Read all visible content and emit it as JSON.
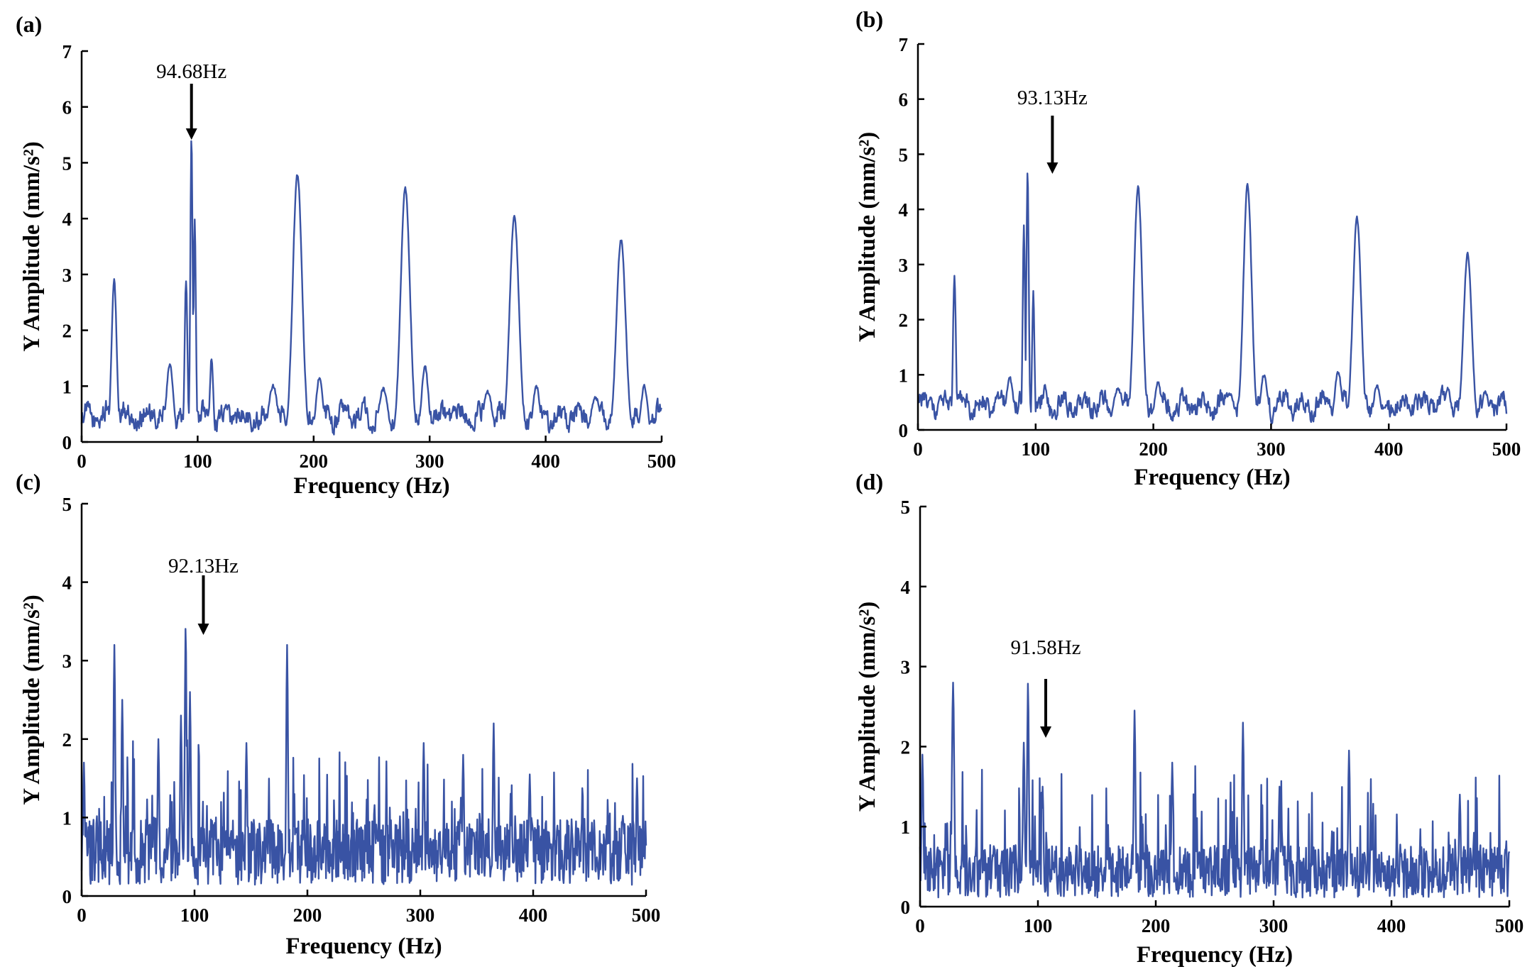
{
  "chart_data": [
    {
      "type": "line",
      "panel": "(a)",
      "xlabel": "Frequency (Hz)",
      "ylabel": "Y Amplitude (mm/s²)",
      "xlim": [
        0,
        500
      ],
      "ylim": [
        0,
        7
      ],
      "xticks": [
        0,
        100,
        200,
        300,
        400,
        500
      ],
      "yticks": [
        0,
        1,
        2,
        3,
        4,
        5,
        6,
        7
      ],
      "annotation": {
        "text": "94.68Hz",
        "x": 94.68
      },
      "series_color": "#3953a4",
      "peaks": [
        {
          "x": 28,
          "y": 2.9,
          "w": 2.2
        },
        {
          "x": 76,
          "y": 1.4,
          "w": 3
        },
        {
          "x": 90,
          "y": 2.9,
          "w": 1.2
        },
        {
          "x": 94.68,
          "y": 5.45,
          "w": 1
        },
        {
          "x": 97.5,
          "y": 4.0,
          "w": 1
        },
        {
          "x": 112,
          "y": 1.5,
          "w": 1.5
        },
        {
          "x": 165,
          "y": 1.0,
          "w": 4
        },
        {
          "x": 186,
          "y": 4.8,
          "w": 4
        },
        {
          "x": 205,
          "y": 1.15,
          "w": 3
        },
        {
          "x": 260,
          "y": 0.95,
          "w": 4
        },
        {
          "x": 279,
          "y": 4.55,
          "w": 4
        },
        {
          "x": 296,
          "y": 1.35,
          "w": 3
        },
        {
          "x": 350,
          "y": 0.9,
          "w": 4
        },
        {
          "x": 373,
          "y": 4.05,
          "w": 4
        },
        {
          "x": 392,
          "y": 1.0,
          "w": 3
        },
        {
          "x": 443,
          "y": 0.8,
          "w": 4
        },
        {
          "x": 465,
          "y": 3.62,
          "w": 4
        },
        {
          "x": 485,
          "y": 1.0,
          "w": 3
        }
      ],
      "baseline": 0.45
    },
    {
      "type": "line",
      "panel": "(b)",
      "xlabel": "Frequency (Hz)",
      "ylabel": "Y Amplitude (mm/s²)",
      "xlim": [
        0,
        500
      ],
      "ylim": [
        0,
        7
      ],
      "xticks": [
        0,
        100,
        200,
        300,
        400,
        500
      ],
      "yticks": [
        0,
        1,
        2,
        3,
        4,
        5,
        6,
        7
      ],
      "annotation": {
        "text": "93.13Hz",
        "x": 93.13
      },
      "series_color": "#3953a4",
      "peaks": [
        {
          "x": 31,
          "y": 2.8,
          "w": 1.2
        },
        {
          "x": 78,
          "y": 0.95,
          "w": 3
        },
        {
          "x": 90,
          "y": 3.7,
          "w": 1
        },
        {
          "x": 93.13,
          "y": 4.7,
          "w": 1
        },
        {
          "x": 98,
          "y": 2.5,
          "w": 1
        },
        {
          "x": 108,
          "y": 0.8,
          "w": 2
        },
        {
          "x": 170,
          "y": 0.75,
          "w": 4
        },
        {
          "x": 187,
          "y": 4.4,
          "w": 3.5
        },
        {
          "x": 204,
          "y": 0.85,
          "w": 3
        },
        {
          "x": 265,
          "y": 0.65,
          "w": 4
        },
        {
          "x": 280,
          "y": 4.45,
          "w": 3.5
        },
        {
          "x": 294,
          "y": 1.0,
          "w": 3
        },
        {
          "x": 357,
          "y": 1.05,
          "w": 3
        },
        {
          "x": 373,
          "y": 3.85,
          "w": 3.5
        },
        {
          "x": 390,
          "y": 0.8,
          "w": 3
        },
        {
          "x": 450,
          "y": 0.75,
          "w": 3
        },
        {
          "x": 467,
          "y": 3.2,
          "w": 3.5
        },
        {
          "x": 482,
          "y": 0.7,
          "w": 3
        }
      ],
      "baseline": 0.45
    },
    {
      "type": "line",
      "panel": "(c)",
      "xlabel": "Frequency (Hz)",
      "ylabel": "Y Amplitude (mm/s²)",
      "xlim": [
        0,
        500
      ],
      "ylim": [
        0,
        5
      ],
      "xticks": [
        0,
        100,
        200,
        300,
        400,
        500
      ],
      "yticks": [
        0,
        1,
        2,
        3,
        4,
        5
      ],
      "annotation": {
        "text": "92.13Hz",
        "x": 92.13
      },
      "series_color": "#3953a4",
      "peaks": [
        {
          "x": 2,
          "y": 1.7,
          "w": 0.8
        },
        {
          "x": 29,
          "y": 3.2,
          "w": 0.8
        },
        {
          "x": 36,
          "y": 2.5,
          "w": 0.8
        },
        {
          "x": 68,
          "y": 2.0,
          "w": 0.8
        },
        {
          "x": 88,
          "y": 2.3,
          "w": 0.8
        },
        {
          "x": 92.13,
          "y": 3.45,
          "w": 0.8
        },
        {
          "x": 96,
          "y": 2.6,
          "w": 0.8
        },
        {
          "x": 146,
          "y": 1.95,
          "w": 0.8
        },
        {
          "x": 182,
          "y": 3.2,
          "w": 0.8
        },
        {
          "x": 303,
          "y": 1.95,
          "w": 0.8
        },
        {
          "x": 338,
          "y": 1.8,
          "w": 0.8
        },
        {
          "x": 365,
          "y": 2.2,
          "w": 0.8
        },
        {
          "x": 397,
          "y": 1.55,
          "w": 0.8
        },
        {
          "x": 492,
          "y": 1.5,
          "w": 0.8
        }
      ],
      "baseline": 0.7
    },
    {
      "type": "line",
      "panel": "(d)",
      "xlabel": "Frequency (Hz)",
      "ylabel": "Y Amplitude (mm/s²)",
      "xlim": [
        0,
        500
      ],
      "ylim": [
        0,
        5
      ],
      "xticks": [
        0,
        100,
        200,
        300,
        400,
        500
      ],
      "yticks": [
        0,
        1,
        2,
        3,
        4,
        5
      ],
      "annotation": {
        "text": "91.58Hz",
        "x": 91.58
      },
      "series_color": "#3953a4",
      "peaks": [
        {
          "x": 2,
          "y": 1.9,
          "w": 0.8
        },
        {
          "x": 28,
          "y": 2.8,
          "w": 1
        },
        {
          "x": 88,
          "y": 2.05,
          "w": 0.8
        },
        {
          "x": 91.58,
          "y": 2.8,
          "w": 0.8
        },
        {
          "x": 104,
          "y": 1.5,
          "w": 0.8
        },
        {
          "x": 182,
          "y": 2.45,
          "w": 0.8
        },
        {
          "x": 214,
          "y": 1.8,
          "w": 0.8
        },
        {
          "x": 274,
          "y": 2.3,
          "w": 0.8
        },
        {
          "x": 305,
          "y": 1.5,
          "w": 0.8
        },
        {
          "x": 364,
          "y": 1.95,
          "w": 0.8
        },
        {
          "x": 458,
          "y": 1.4,
          "w": 0.8
        }
      ],
      "baseline": 0.55
    }
  ]
}
